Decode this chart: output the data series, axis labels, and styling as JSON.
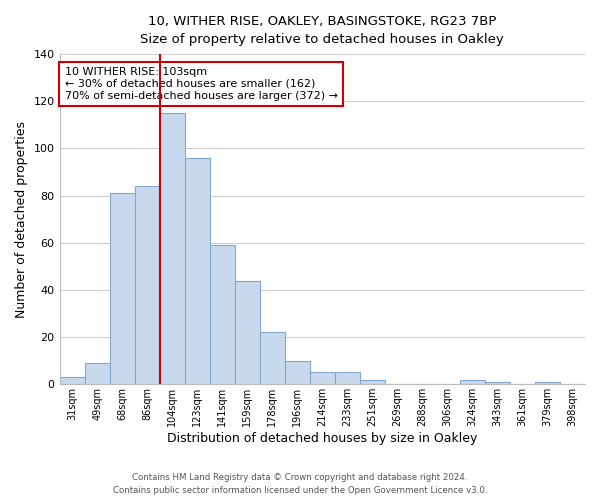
{
  "title1": "10, WITHER RISE, OAKLEY, BASINGSTOKE, RG23 7BP",
  "title2": "Size of property relative to detached houses in Oakley",
  "xlabel": "Distribution of detached houses by size in Oakley",
  "ylabel": "Number of detached properties",
  "categories": [
    "31sqm",
    "49sqm",
    "68sqm",
    "86sqm",
    "104sqm",
    "123sqm",
    "141sqm",
    "159sqm",
    "178sqm",
    "196sqm",
    "214sqm",
    "233sqm",
    "251sqm",
    "269sqm",
    "288sqm",
    "306sqm",
    "324sqm",
    "343sqm",
    "361sqm",
    "379sqm",
    "398sqm"
  ],
  "values": [
    3,
    9,
    81,
    84,
    115,
    96,
    59,
    44,
    22,
    10,
    5,
    5,
    2,
    0,
    0,
    0,
    2,
    1,
    0,
    1,
    0
  ],
  "bar_color": "#c8d9ee",
  "bar_edge_color": "#7fa8cc",
  "vline_x_index": 4,
  "vline_color": "#cc0000",
  "ylim": [
    0,
    140
  ],
  "yticks": [
    0,
    20,
    40,
    60,
    80,
    100,
    120,
    140
  ],
  "annotation_title": "10 WITHER RISE: 103sqm",
  "annotation_line1": "← 30% of detached houses are smaller (162)",
  "annotation_line2": "70% of semi-detached houses are larger (372) →",
  "footer1": "Contains HM Land Registry data © Crown copyright and database right 2024.",
  "footer2": "Contains public sector information licensed under the Open Government Licence v3.0.",
  "bg_color": "#ffffff",
  "grid_color": "#cccccc"
}
